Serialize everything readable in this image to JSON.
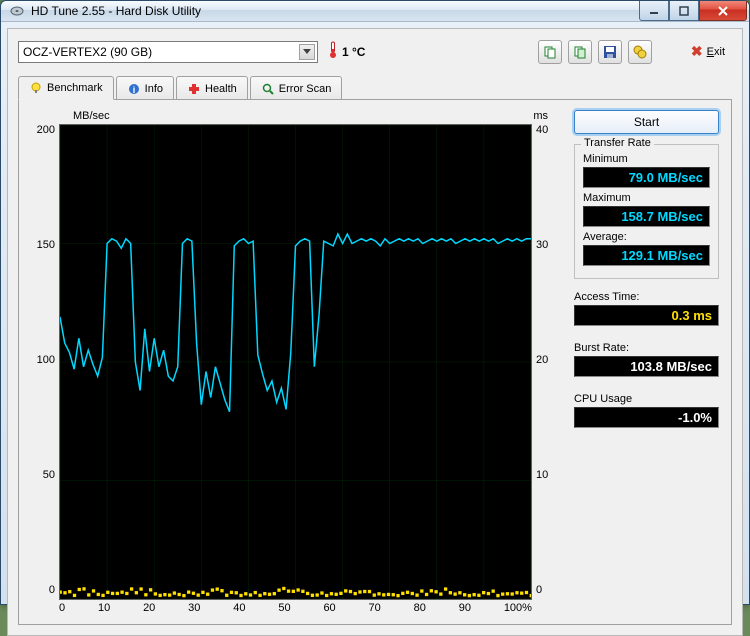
{
  "window": {
    "title": "HD Tune 2.55 - Hard Disk Utility"
  },
  "drive": {
    "selected": "OCZ-VERTEX2 (90 GB)"
  },
  "temperature": {
    "text": "1 °C"
  },
  "toolbar": {
    "exit_label": "Exit"
  },
  "tabs": {
    "benchmark": "Benchmark",
    "info": "Info",
    "health": "Health",
    "errorscan": "Error Scan"
  },
  "chart": {
    "left_unit": "MB/sec",
    "right_unit": "ms",
    "y_left": {
      "max": 200,
      "ticks": [
        "200",
        "150",
        "100",
        "50",
        "0"
      ]
    },
    "y_right": {
      "max": 40,
      "ticks": [
        "40",
        "30",
        "20",
        "10",
        "0"
      ]
    },
    "x_ticks": [
      "0",
      "10",
      "20",
      "30",
      "40",
      "50",
      "60",
      "70",
      "80",
      "90",
      "100%"
    ],
    "grid_color": "#004000",
    "gridlines_v": [
      0,
      10,
      20,
      30,
      40,
      50,
      60,
      70,
      80,
      90,
      100
    ],
    "gridlines_h": [
      0,
      50,
      100,
      150,
      200
    ],
    "transfer_series": {
      "color": "#00d8ff",
      "points": [
        [
          0,
          119
        ],
        [
          1,
          108
        ],
        [
          2,
          104
        ],
        [
          3,
          97
        ],
        [
          4,
          110
        ],
        [
          5,
          98
        ],
        [
          6,
          105
        ],
        [
          7,
          99
        ],
        [
          8,
          94
        ],
        [
          9,
          102
        ],
        [
          10,
          150
        ],
        [
          11,
          152
        ],
        [
          12,
          151
        ],
        [
          13,
          148
        ],
        [
          14,
          152
        ],
        [
          15,
          150
        ],
        [
          16,
          100
        ],
        [
          17,
          88
        ],
        [
          18,
          114
        ],
        [
          19,
          96
        ],
        [
          20,
          110
        ],
        [
          21,
          98
        ],
        [
          22,
          105
        ],
        [
          23,
          94
        ],
        [
          24,
          92
        ],
        [
          25,
          98
        ],
        [
          26,
          150
        ],
        [
          27,
          152
        ],
        [
          28,
          151
        ],
        [
          29,
          108
        ],
        [
          30,
          82
        ],
        [
          31,
          96
        ],
        [
          32,
          85
        ],
        [
          33,
          98
        ],
        [
          34,
          91
        ],
        [
          35,
          84
        ],
        [
          36,
          79
        ],
        [
          37,
          149
        ],
        [
          38,
          151
        ],
        [
          39,
          152
        ],
        [
          40,
          150
        ],
        [
          41,
          151
        ],
        [
          42,
          103
        ],
        [
          43,
          95
        ],
        [
          44,
          88
        ],
        [
          45,
          92
        ],
        [
          46,
          83
        ],
        [
          47,
          89
        ],
        [
          48,
          80
        ],
        [
          49,
          104
        ],
        [
          50,
          149
        ],
        [
          51,
          151
        ],
        [
          52,
          152
        ],
        [
          53,
          151
        ],
        [
          54,
          98
        ],
        [
          55,
          120
        ],
        [
          56,
          151
        ],
        [
          57,
          150
        ],
        [
          58,
          149
        ],
        [
          59,
          154
        ],
        [
          60,
          150
        ],
        [
          61,
          154
        ],
        [
          62,
          150
        ],
        [
          63,
          151
        ],
        [
          64,
          152
        ],
        [
          65,
          151
        ],
        [
          66,
          152
        ],
        [
          67,
          151
        ],
        [
          68,
          149
        ],
        [
          69,
          152
        ],
        [
          70,
          150
        ],
        [
          71,
          151
        ],
        [
          72,
          152
        ],
        [
          73,
          151
        ],
        [
          74,
          152
        ],
        [
          75,
          151
        ],
        [
          76,
          152
        ],
        [
          77,
          150
        ],
        [
          78,
          151
        ],
        [
          79,
          152
        ],
        [
          80,
          151
        ],
        [
          81,
          152
        ],
        [
          82,
          151
        ],
        [
          83,
          152
        ],
        [
          84,
          150
        ],
        [
          85,
          151
        ],
        [
          86,
          152
        ],
        [
          87,
          151
        ],
        [
          88,
          152
        ],
        [
          89,
          151
        ],
        [
          90,
          152
        ],
        [
          91,
          151
        ],
        [
          92,
          152
        ],
        [
          93,
          150
        ],
        [
          94,
          151
        ],
        [
          95,
          152
        ],
        [
          96,
          151
        ],
        [
          97,
          152
        ],
        [
          98,
          151
        ],
        [
          99,
          152
        ],
        [
          100,
          152
        ]
      ]
    },
    "access_series": {
      "color": "#ffe000",
      "baseline_ms": 0.3,
      "jitter": 0.6,
      "count": 100
    }
  },
  "buttons": {
    "start": "Start"
  },
  "results": {
    "transfer_title": "Transfer Rate",
    "min_label": "Minimum",
    "min_value": "79.0 MB/sec",
    "max_label": "Maximum",
    "max_value": "158.7 MB/sec",
    "avg_label": "Average:",
    "avg_value": "129.1 MB/sec",
    "access_label": "Access Time:",
    "access_value": "0.3 ms",
    "burst_label": "Burst Rate:",
    "burst_value": "103.8 MB/sec",
    "cpu_label": "CPU Usage",
    "cpu_value": "-1.0%"
  }
}
